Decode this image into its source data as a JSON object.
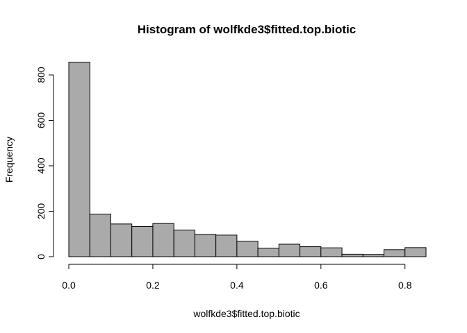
{
  "chart_data": {
    "type": "bar",
    "title": "Histogram of wolfkde3$fitted.top.biotic",
    "xlabel": "wolfkde3$fitted.top.biotic",
    "ylabel": "Frequency",
    "bin_width": 0.05,
    "bin_start": 0.0,
    "values": [
      856,
      187,
      144,
      133,
      146,
      117,
      98,
      95,
      68,
      37,
      55,
      44,
      39,
      11,
      10,
      31,
      40
    ],
    "x_ticks": [
      "0.0",
      "0.2",
      "0.4",
      "0.6",
      "0.8"
    ],
    "x_tick_values": [
      0.0,
      0.2,
      0.4,
      0.6,
      0.8
    ],
    "y_ticks": [
      "0",
      "200",
      "400",
      "600",
      "800"
    ],
    "y_tick_values": [
      0,
      200,
      400,
      600,
      800
    ],
    "xlim": [
      0.0,
      0.85
    ],
    "ylim": [
      0,
      800
    ],
    "bar_color": "#aaaaaa",
    "grid": false
  }
}
